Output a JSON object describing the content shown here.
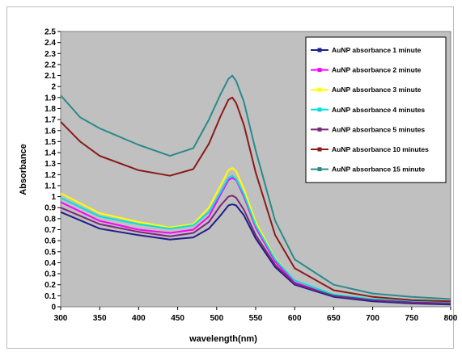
{
  "chart_data": {
    "type": "line",
    "title": "",
    "xlabel": "wavelength(nm)",
    "ylabel": "Absorbance",
    "xlim": [
      300,
      800
    ],
    "ylim": [
      0,
      2.5
    ],
    "x_ticks": [
      300,
      350,
      400,
      450,
      500,
      550,
      600,
      650,
      700,
      750,
      800
    ],
    "y_ticks": [
      0,
      0.1,
      0.2,
      0.3,
      0.4,
      0.5,
      0.6,
      0.7,
      0.8,
      0.9,
      1,
      1.1,
      1.2,
      1.3,
      1.4,
      1.5,
      1.6,
      1.7,
      1.8,
      1.9,
      2,
      2.1,
      2.2,
      2.3,
      2.4,
      2.5
    ],
    "grid": false,
    "legend_position": "top-right",
    "plot_background": "#c0c0c0",
    "series": [
      {
        "name": "AuNP absorbance 1 minute",
        "color": "#1f1f8a",
        "x": [
          300,
          350,
          400,
          440,
          470,
          490,
          505,
          515,
          520,
          525,
          535,
          550,
          575,
          600,
          650,
          700,
          750,
          800
        ],
        "y": [
          0.86,
          0.71,
          0.65,
          0.61,
          0.63,
          0.71,
          0.83,
          0.92,
          0.93,
          0.92,
          0.83,
          0.62,
          0.36,
          0.2,
          0.09,
          0.05,
          0.03,
          0.02
        ]
      },
      {
        "name": "AuNP absorbance 2 minute",
        "color": "#ff00ff",
        "x": [
          300,
          350,
          400,
          440,
          470,
          490,
          505,
          515,
          520,
          525,
          535,
          550,
          575,
          600,
          650,
          700,
          750,
          800
        ],
        "y": [
          0.95,
          0.78,
          0.7,
          0.67,
          0.7,
          0.82,
          1.02,
          1.15,
          1.17,
          1.15,
          1.0,
          0.72,
          0.41,
          0.22,
          0.1,
          0.06,
          0.04,
          0.03
        ]
      },
      {
        "name": "AuNP absorbance 3 minute",
        "color": "#ffff00",
        "x": [
          300,
          350,
          400,
          440,
          470,
          490,
          505,
          515,
          520,
          525,
          535,
          550,
          575,
          600,
          650,
          700,
          750,
          800
        ],
        "y": [
          1.03,
          0.85,
          0.77,
          0.72,
          0.75,
          0.9,
          1.1,
          1.24,
          1.26,
          1.23,
          1.07,
          0.77,
          0.44,
          0.24,
          0.11,
          0.07,
          0.05,
          0.04
        ]
      },
      {
        "name": "AuNP absorbance 4 minutes",
        "color": "#00e0e0",
        "x": [
          300,
          350,
          400,
          440,
          470,
          490,
          505,
          515,
          520,
          525,
          535,
          550,
          575,
          600,
          650,
          700,
          750,
          800
        ],
        "y": [
          0.99,
          0.82,
          0.75,
          0.71,
          0.74,
          0.86,
          1.04,
          1.17,
          1.19,
          1.16,
          1.02,
          0.74,
          0.43,
          0.24,
          0.11,
          0.07,
          0.05,
          0.04
        ]
      },
      {
        "name": "AuNP absorbance 5 minutes",
        "color": "#7a2a7a",
        "x": [
          300,
          350,
          400,
          440,
          470,
          490,
          505,
          515,
          520,
          525,
          535,
          550,
          575,
          600,
          650,
          700,
          750,
          800
        ],
        "y": [
          0.9,
          0.75,
          0.68,
          0.64,
          0.67,
          0.77,
          0.92,
          1.0,
          1.01,
          0.99,
          0.88,
          0.65,
          0.38,
          0.21,
          0.1,
          0.06,
          0.04,
          0.03
        ]
      },
      {
        "name": "AuNP absorbance 10 minutes",
        "color": "#8b1a1a",
        "x": [
          300,
          325,
          350,
          400,
          440,
          470,
          490,
          505,
          515,
          520,
          525,
          535,
          550,
          575,
          600,
          650,
          700,
          750,
          800
        ],
        "y": [
          1.68,
          1.5,
          1.37,
          1.24,
          1.19,
          1.25,
          1.48,
          1.73,
          1.88,
          1.9,
          1.85,
          1.65,
          1.22,
          0.65,
          0.35,
          0.15,
          0.09,
          0.06,
          0.05
        ]
      },
      {
        "name": "AuNP absorbance 15 minute",
        "color": "#2a8a8a",
        "x": [
          300,
          325,
          350,
          400,
          440,
          470,
          490,
          505,
          515,
          520,
          525,
          535,
          550,
          575,
          600,
          650,
          700,
          750,
          800
        ],
        "y": [
          1.92,
          1.72,
          1.62,
          1.47,
          1.37,
          1.44,
          1.7,
          1.93,
          2.07,
          2.1,
          2.05,
          1.86,
          1.42,
          0.78,
          0.43,
          0.2,
          0.12,
          0.09,
          0.07
        ]
      }
    ]
  }
}
